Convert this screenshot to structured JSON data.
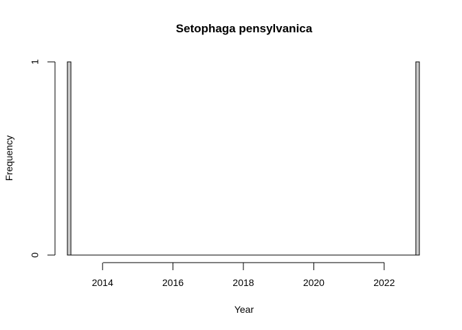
{
  "chart_data": {
    "type": "bar",
    "title": "Setophaga pensylvanica",
    "xlabel": "Year",
    "ylabel": "Frequency",
    "x_ticks": [
      2014,
      2016,
      2018,
      2020,
      2022
    ],
    "y_ticks": [
      0,
      1
    ],
    "xlim": [
      2013,
      2023
    ],
    "ylim": [
      0,
      1
    ],
    "bin_width": 0.1,
    "bins": [
      {
        "start": 2013.0,
        "end": 2013.1,
        "value": 1
      },
      {
        "start": 2022.9,
        "end": 2023.0,
        "value": 1
      }
    ],
    "colors": {
      "bar_fill": "#cccccc",
      "bar_stroke": "#000000"
    }
  }
}
